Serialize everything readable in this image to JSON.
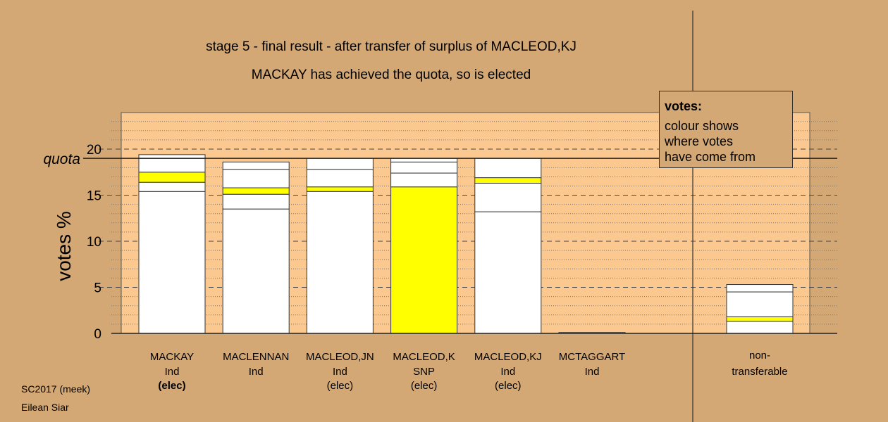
{
  "header": {
    "line1": "stage 5 - final result - after transfer of surplus of MACLEOD,KJ",
    "line2": "MACKAY has achieved the quota, so is elected"
  },
  "legend": {
    "title": "votes:",
    "lines": [
      "colour shows",
      "where votes",
      "have come from"
    ]
  },
  "footer": {
    "line1": "SC2017 (meek)",
    "line2": "Eilean Siar"
  },
  "colors": {
    "background": "#d4a874",
    "plot_background": "#fbc98f",
    "bar_white": "#ffffff",
    "bar_yellow": "#ffff00"
  },
  "chart_data": {
    "type": "bar",
    "stacked": true,
    "ylabel": "votes %",
    "ylim": [
      0,
      23
    ],
    "yticks": [
      0,
      5,
      10,
      15,
      20
    ],
    "quota": {
      "value": 19,
      "label": "quota"
    },
    "categories": [
      {
        "name": "MACKAY",
        "party": "Ind",
        "status": "(elec)",
        "status_bold": true,
        "segments": [
          {
            "value": 15.4,
            "color": "white"
          },
          {
            "value": 1.0,
            "color": "white"
          },
          {
            "value": 1.1,
            "color": "yellow"
          },
          {
            "value": 1.5,
            "color": "white"
          },
          {
            "value": 0.4,
            "color": "white"
          }
        ]
      },
      {
        "name": "MACLENNAN",
        "party": "Ind",
        "status": "",
        "status_bold": false,
        "segments": [
          {
            "value": 13.5,
            "color": "white"
          },
          {
            "value": 1.6,
            "color": "white"
          },
          {
            "value": 0.7,
            "color": "yellow"
          },
          {
            "value": 2.0,
            "color": "white"
          },
          {
            "value": 0.8,
            "color": "white"
          }
        ]
      },
      {
        "name": "MACLEOD,JN",
        "party": "Ind",
        "status": "(elec)",
        "status_bold": false,
        "segments": [
          {
            "value": 15.4,
            "color": "white"
          },
          {
            "value": 0.5,
            "color": "yellow"
          },
          {
            "value": 1.9,
            "color": "white"
          },
          {
            "value": 1.2,
            "color": "white"
          }
        ]
      },
      {
        "name": "MACLEOD,K",
        "party": "SNP",
        "status": "(elec)",
        "status_bold": false,
        "segments": [
          {
            "value": 15.9,
            "color": "yellow"
          },
          {
            "value": 1.5,
            "color": "white"
          },
          {
            "value": 1.2,
            "color": "white"
          },
          {
            "value": 0.4,
            "color": "white"
          }
        ]
      },
      {
        "name": "MACLEOD,KJ",
        "party": "Ind",
        "status": "(elec)",
        "status_bold": false,
        "segments": [
          {
            "value": 13.2,
            "color": "white"
          },
          {
            "value": 3.1,
            "color": "white"
          },
          {
            "value": 0.6,
            "color": "yellow"
          },
          {
            "value": 2.1,
            "color": "white"
          }
        ]
      },
      {
        "name": "MCTAGGART",
        "party": "Ind",
        "status": "",
        "status_bold": false,
        "segments": [
          {
            "value": 0.1,
            "color": "white"
          }
        ]
      }
    ],
    "nontransferable": {
      "label_lines": [
        "non-",
        "transferable"
      ],
      "segments": [
        {
          "value": 1.3,
          "color": "white"
        },
        {
          "value": 0.5,
          "color": "yellow"
        },
        {
          "value": 2.7,
          "color": "white"
        },
        {
          "value": 0.8,
          "color": "white"
        }
      ]
    }
  }
}
